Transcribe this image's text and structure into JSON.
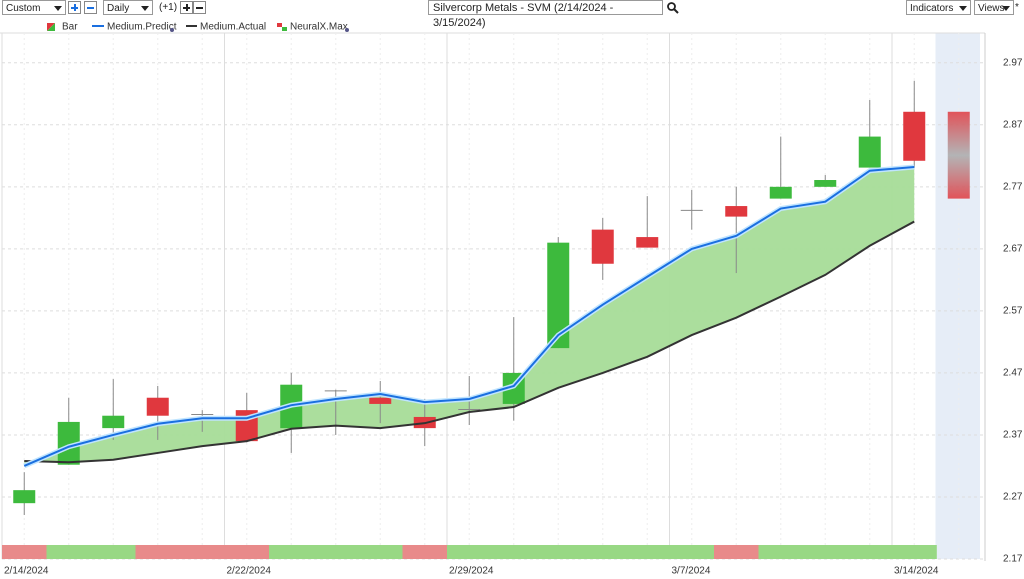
{
  "toolbar": {
    "range": "Custom",
    "interval": "Daily",
    "offset": "(+1)",
    "indicators": "Indicators",
    "views": "Views",
    "star": "*"
  },
  "chart_data": {
    "type": "candlestick",
    "title": "Silvercorp Metals - SVM (2/14/2024 - 3/15/2024)",
    "categories": [
      "2/14/2024",
      null,
      null,
      null,
      null,
      "2/22/2024",
      null,
      null,
      null,
      null,
      "2/29/2024",
      null,
      null,
      null,
      null,
      "3/7/2024",
      null,
      null,
      null,
      null,
      "3/14/2024",
      null
    ],
    "ylim": [
      2.17,
      3.018
    ],
    "yticks": [
      2.17,
      2.27,
      2.37,
      2.47,
      2.57,
      2.67,
      2.77,
      2.87,
      2.97
    ],
    "grid": true,
    "up_color": "#3dba3d",
    "down_color": "#e0383e",
    "series": [
      {
        "name": "Bar",
        "open": [
          2.26,
          2.322,
          2.381,
          2.43,
          2.403,
          2.41,
          2.381,
          2.441,
          2.43,
          2.399,
          2.411,
          2.42,
          2.51,
          2.701,
          2.689,
          2.732,
          2.739,
          2.751,
          2.77,
          2.801,
          2.891,
          null
        ],
        "high": [
          2.31,
          2.43,
          2.46,
          2.449,
          2.41,
          2.438,
          2.47,
          2.443,
          2.457,
          2.428,
          2.465,
          2.56,
          2.689,
          2.72,
          2.755,
          2.765,
          2.77,
          2.851,
          2.789,
          2.91,
          2.941,
          null
        ],
        "low": [
          2.241,
          2.322,
          2.362,
          2.362,
          2.375,
          2.358,
          2.341,
          2.37,
          2.389,
          2.352,
          2.386,
          2.393,
          2.51,
          2.62,
          2.672,
          2.701,
          2.631,
          2.751,
          2.77,
          2.801,
          2.801,
          null
        ],
        "close": [
          2.281,
          2.391,
          2.401,
          2.401,
          2.401,
          2.36,
          2.451,
          2.44,
          2.42,
          2.381,
          2.41,
          2.47,
          2.68,
          2.646,
          2.672,
          2.73,
          2.722,
          2.77,
          2.781,
          2.851,
          2.812,
          null
        ],
        "forecast": [
          2.751,
          2.891
        ]
      },
      {
        "name": "Medium.Predict",
        "color": "#1a6fe0",
        "values": [
          2.32,
          2.351,
          2.37,
          2.388,
          2.397,
          2.397,
          2.418,
          2.428,
          2.436,
          2.423,
          2.428,
          2.449,
          2.531,
          2.58,
          2.625,
          2.67,
          2.691,
          2.735,
          2.746,
          2.796,
          2.802,
          null
        ]
      },
      {
        "name": "Medium.Actual",
        "color": "#333333",
        "values": [
          2.328,
          2.326,
          2.33,
          2.341,
          2.352,
          2.36,
          2.38,
          2.385,
          2.381,
          2.389,
          2.407,
          2.415,
          2.446,
          2.47,
          2.496,
          2.531,
          2.559,
          2.593,
          2.628,
          2.675,
          2.714,
          null
        ]
      },
      {
        "name": "NeuralX.Max",
        "colors": [
          "#e88a8a",
          "#98d884",
          "#98d884",
          "#e88a8a",
          "#e88a8a",
          "#e88a8a",
          "#98d884",
          "#98d884",
          "#98d884",
          "#e88a8a",
          "#98d884",
          "#98d884",
          "#98d884",
          "#98d884",
          "#98d884",
          "#98d884",
          "#e88a8a",
          "#98d884",
          "#98d884",
          "#98d884",
          "#98d884",
          null
        ]
      }
    ],
    "fill_color": "#a6dc98"
  }
}
